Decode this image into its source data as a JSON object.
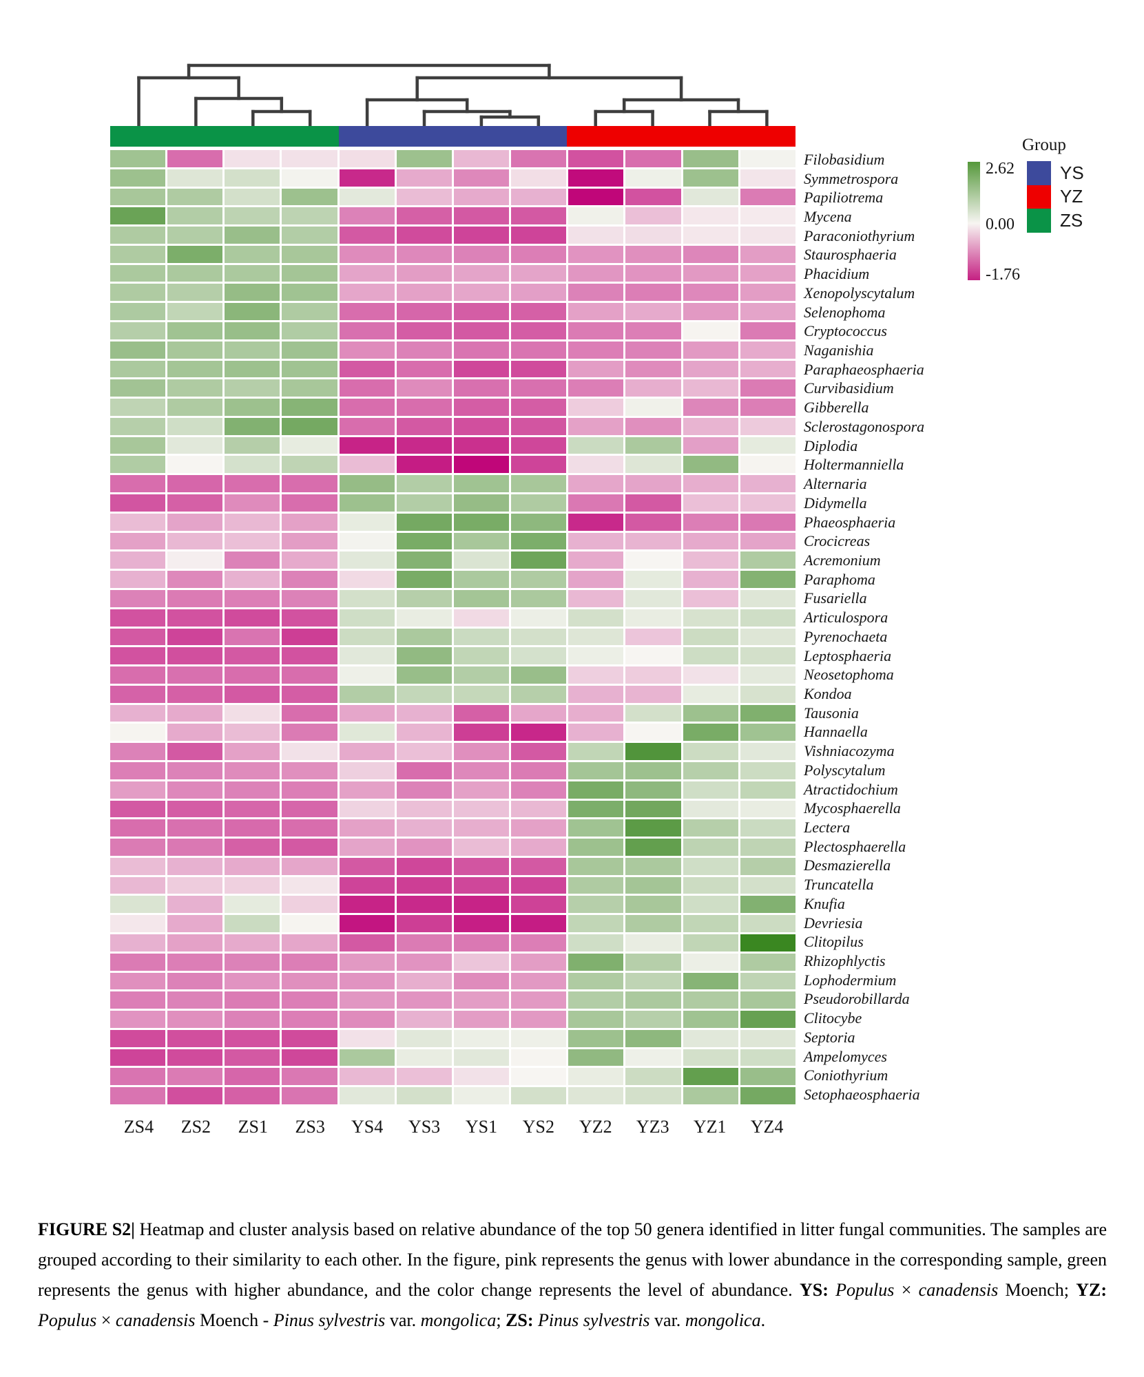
{
  "legend": {
    "group_title": "Group",
    "groups": [
      {
        "label": "YS",
        "color": "#3d4a9c"
      },
      {
        "label": "YZ",
        "color": "#ee0000"
      },
      {
        "label": "ZS",
        "color": "#0a9347"
      }
    ],
    "colorbar": {
      "max_label": "2.62",
      "mid_label": "0.00",
      "min_label": "-1.76",
      "top_color": "#55983b",
      "mid_color": "#f7f5f2",
      "bottom_color": "#c52082",
      "mid_stop_pct": 52
    }
  },
  "chart_data": {
    "type": "heatmap",
    "title": "Heatmap and cluster analysis of top 50 genera in litter fungal communities",
    "legend_position": "right",
    "value_range": [
      -1.76,
      2.62
    ],
    "colormap": {
      "negative": "#c00679",
      "zero": "#f7f5f2",
      "positive": "#3a8721"
    },
    "columns": [
      "ZS4",
      "ZS2",
      "ZS1",
      "ZS3",
      "YS4",
      "YS3",
      "YS1",
      "YS2",
      "YZ2",
      "YZ3",
      "YZ1",
      "YZ4"
    ],
    "column_groups": [
      "ZS",
      "ZS",
      "ZS",
      "ZS",
      "YS",
      "YS",
      "YS",
      "YS",
      "YZ",
      "YZ",
      "YZ",
      "YZ"
    ],
    "group_colors": {
      "ZS": "#0a9347",
      "YS": "#3d4a9c",
      "YZ": "#ee0000"
    },
    "rows": [
      "Filobasidium",
      "Symmetrospora",
      "Papiliotrema",
      "Mycena",
      "Paraconiothyrium",
      "Staurosphaeria",
      "Phacidium",
      "Xenopolyscytalum",
      "Selenophoma",
      "Cryptococcus",
      "Naganishia",
      "Paraphaeosphaeria",
      "Curvibasidium",
      "Gibberella",
      "Sclerostagonospora",
      "Diplodia",
      "Holtermanniella",
      "Alternaria",
      "Didymella",
      "Phaeosphaeria",
      "Crocicreas",
      "Acremonium",
      "Paraphoma",
      "Fusariella",
      "Articulospora",
      "Pyrenochaeta",
      "Leptosphaeria",
      "Neosetophoma",
      "Kondoa",
      "Tausonia",
      "Hannaella",
      "Vishniacozyma",
      "Polyscytalum",
      "Atractidochium",
      "Mycosphaerella",
      "Lectera",
      "Plectosphaerella",
      "Desmazierella",
      "Truncatella",
      "Knufia",
      "Devriesia",
      "Clitopilus",
      "Rhizophlyctis",
      "Lophodermium",
      "Pseudorobillarda",
      "Clitocybe",
      "Septoria",
      "Ampelomyces",
      "Coniothyrium",
      "Setophaeosphaeria"
    ],
    "values": [
      [
        1.2,
        -1.0,
        -0.15,
        -0.15,
        -0.17,
        1.25,
        -0.45,
        -0.95,
        -1.2,
        -1.0,
        1.3,
        0.05
      ],
      [
        1.25,
        0.35,
        0.5,
        0.05,
        -1.5,
        -0.55,
        -0.8,
        -0.17,
        -1.72,
        0.12,
        1.25,
        -0.12
      ],
      [
        1.1,
        1.0,
        0.5,
        1.25,
        0.28,
        -0.42,
        -0.55,
        -0.5,
        -1.76,
        -1.2,
        0.3,
        -0.9
      ],
      [
        1.95,
        0.95,
        0.8,
        0.8,
        -0.85,
        -1.1,
        -1.15,
        -1.15,
        0.1,
        -0.4,
        -0.1,
        -0.08
      ],
      [
        1.0,
        0.95,
        1.3,
        0.95,
        -1.15,
        -1.25,
        -1.3,
        -1.3,
        -0.15,
        -0.18,
        -0.1,
        -0.12
      ],
      [
        1.0,
        1.7,
        1.05,
        1.1,
        -0.78,
        -0.8,
        -0.85,
        -0.88,
        -0.72,
        -0.75,
        -0.82,
        -0.65
      ],
      [
        1.05,
        1.05,
        1.05,
        1.15,
        -0.6,
        -0.65,
        -0.6,
        -0.6,
        -0.7,
        -0.72,
        -0.68,
        -0.62
      ],
      [
        1.0,
        0.92,
        1.35,
        1.2,
        -0.58,
        -0.62,
        -0.58,
        -0.63,
        -0.85,
        -0.88,
        -0.8,
        -0.65
      ],
      [
        1.02,
        0.75,
        1.5,
        1.0,
        -1.0,
        -1.05,
        -1.12,
        -1.1,
        -0.62,
        -0.55,
        -0.68,
        -0.6
      ],
      [
        0.92,
        1.2,
        1.32,
        0.98,
        -0.98,
        -1.12,
        -1.15,
        -1.12,
        -0.9,
        -0.88,
        0.02,
        -0.9
      ],
      [
        1.3,
        1.1,
        1.05,
        1.22,
        -0.78,
        -0.85,
        -0.95,
        -0.95,
        -0.88,
        -0.85,
        -0.68,
        -0.55
      ],
      [
        1.05,
        1.15,
        1.25,
        1.2,
        -1.15,
        -1.0,
        -1.28,
        -1.25,
        -0.65,
        -0.78,
        -0.6,
        -0.52
      ],
      [
        1.18,
        1.0,
        0.92,
        1.1,
        -1.0,
        -0.78,
        -0.98,
        -0.98,
        -0.88,
        -0.52,
        -0.45,
        -0.9
      ],
      [
        0.78,
        1.0,
        1.25,
        1.55,
        -1.0,
        -1.0,
        -1.12,
        -1.12,
        -0.3,
        0.1,
        -0.82,
        -0.88
      ],
      [
        0.9,
        0.55,
        1.62,
        1.8,
        -1.0,
        -1.15,
        -1.22,
        -1.18,
        -0.62,
        -0.75,
        -0.48,
        -0.32
      ],
      [
        1.1,
        0.3,
        0.92,
        0.22,
        -1.55,
        -1.5,
        -1.45,
        -1.28,
        0.62,
        1.05,
        -0.63,
        0.25
      ],
      [
        0.98,
        0.0,
        0.48,
        0.78,
        -0.42,
        -1.6,
        -1.76,
        -1.3,
        -0.18,
        0.35,
        1.4,
        0.02
      ],
      [
        -1.0,
        -1.05,
        -1.0,
        -1.0,
        1.35,
        0.95,
        1.2,
        1.1,
        -0.58,
        -0.6,
        -0.52,
        -0.5
      ],
      [
        -1.18,
        -1.1,
        -0.78,
        -1.0,
        1.25,
        0.95,
        1.35,
        1.0,
        -0.92,
        -1.15,
        -0.4,
        -0.38
      ],
      [
        -0.42,
        -0.6,
        -0.45,
        -0.62,
        0.22,
        1.8,
        1.75,
        1.45,
        -1.5,
        -1.15,
        -0.88,
        -0.92
      ],
      [
        -0.62,
        -0.45,
        -0.4,
        -0.65,
        0.05,
        1.75,
        1.1,
        1.7,
        -0.5,
        -0.48,
        -0.55,
        -0.6
      ],
      [
        -0.5,
        -0.05,
        -0.85,
        -0.55,
        0.3,
        1.6,
        0.4,
        1.9,
        -0.55,
        0.0,
        -0.42,
        1.0
      ],
      [
        -0.5,
        -0.8,
        -0.5,
        -0.85,
        -0.2,
        1.75,
        1.05,
        1.0,
        -0.6,
        0.25,
        -0.5,
        1.6
      ],
      [
        -0.85,
        -0.9,
        -0.88,
        -0.85,
        0.5,
        0.9,
        1.15,
        1.05,
        -0.45,
        0.3,
        -0.4,
        0.35
      ],
      [
        -1.2,
        -1.2,
        -1.25,
        -1.2,
        0.55,
        0.2,
        -0.2,
        0.15,
        0.5,
        0.2,
        0.45,
        0.55
      ],
      [
        -1.15,
        -1.3,
        -0.95,
        -1.35,
        0.6,
        1.05,
        0.62,
        0.5,
        0.35,
        -0.35,
        0.6,
        0.35
      ],
      [
        -1.2,
        -1.22,
        -1.15,
        -1.2,
        0.3,
        1.4,
        0.75,
        0.48,
        0.15,
        0.0,
        0.58,
        0.5
      ],
      [
        -1.0,
        -0.98,
        -1.0,
        -1.0,
        0.12,
        1.32,
        0.95,
        1.3,
        -0.28,
        -0.3,
        -0.15,
        0.28
      ],
      [
        -1.08,
        -1.1,
        -1.15,
        -1.12,
        0.95,
        0.72,
        0.7,
        0.9,
        -0.5,
        -0.48,
        0.22,
        0.45
      ],
      [
        -0.5,
        -0.55,
        -0.17,
        -1.0,
        -0.58,
        -0.5,
        -1.1,
        -0.58,
        -0.52,
        0.5,
        1.25,
        1.65
      ],
      [
        0.02,
        -0.55,
        -0.42,
        -0.9,
        0.32,
        -0.48,
        -1.35,
        -1.52,
        -0.5,
        0.0,
        1.75,
        1.2
      ],
      [
        -0.85,
        -1.15,
        -0.62,
        -0.15,
        -0.55,
        -0.4,
        -0.75,
        -1.15,
        0.75,
        2.3,
        0.6,
        0.3
      ],
      [
        -0.88,
        -0.85,
        -0.78,
        -0.75,
        -0.28,
        -1.0,
        -0.8,
        -0.9,
        1.15,
        1.25,
        0.9,
        0.6
      ],
      [
        -0.65,
        -0.8,
        -0.85,
        -0.88,
        -0.62,
        -0.85,
        -0.62,
        -0.85,
        1.75,
        1.45,
        0.55,
        0.75
      ],
      [
        -1.15,
        -1.12,
        -1.05,
        -1.05,
        -0.25,
        -0.4,
        -0.38,
        -0.45,
        1.7,
        1.85,
        0.28,
        0.2
      ],
      [
        -1.0,
        -0.98,
        -1.02,
        -1.0,
        -0.62,
        -0.5,
        -0.52,
        -0.62,
        1.2,
        2.15,
        0.9,
        0.62
      ],
      [
        -0.9,
        -0.92,
        -1.1,
        -1.15,
        -0.6,
        -0.72,
        -0.42,
        -0.55,
        1.25,
        2.05,
        0.8,
        0.78
      ],
      [
        -0.42,
        -0.5,
        -0.55,
        -0.58,
        -1.15,
        -1.28,
        -1.18,
        -1.15,
        1.1,
        1.05,
        0.55,
        0.92
      ],
      [
        -0.45,
        -0.3,
        -0.27,
        -0.12,
        -1.3,
        -1.35,
        -1.28,
        -1.3,
        1.0,
        1.15,
        0.6,
        0.5
      ],
      [
        0.4,
        -0.5,
        0.25,
        -0.27,
        -1.55,
        -1.5,
        -1.55,
        -1.32,
        0.9,
        1.1,
        0.55,
        1.62
      ],
      [
        -0.1,
        -0.55,
        0.62,
        0.02,
        -1.65,
        -1.35,
        -1.58,
        -1.6,
        0.75,
        1.0,
        0.75,
        0.6
      ],
      [
        -0.5,
        -0.62,
        -0.55,
        -0.58,
        -1.15,
        -0.9,
        -0.92,
        -0.88,
        0.55,
        0.2,
        0.75,
        2.62
      ],
      [
        -0.9,
        -0.88,
        -0.85,
        -0.88,
        -0.68,
        -0.72,
        -0.35,
        -0.65,
        1.65,
        0.9,
        0.15,
        1.0
      ],
      [
        -0.75,
        -0.85,
        -0.72,
        -0.75,
        -0.72,
        -0.52,
        -0.78,
        -0.68,
        1.0,
        0.78,
        1.55,
        0.78
      ],
      [
        -0.88,
        -0.85,
        -0.9,
        -0.88,
        -0.7,
        -0.72,
        -0.65,
        -0.68,
        0.95,
        1.05,
        1.0,
        1.1
      ],
      [
        -0.72,
        -0.75,
        -0.85,
        -0.88,
        -0.78,
        -0.5,
        -0.65,
        -0.68,
        1.1,
        0.9,
        1.2,
        2.0
      ],
      [
        -1.25,
        -1.22,
        -1.2,
        -1.25,
        -0.15,
        0.3,
        0.15,
        0.12,
        1.25,
        1.45,
        0.3,
        0.35
      ],
      [
        -1.3,
        -1.25,
        -1.15,
        -1.28,
        1.05,
        0.2,
        0.3,
        0.02,
        1.42,
        0.12,
        0.5,
        0.55
      ],
      [
        -0.95,
        -0.9,
        -1.05,
        -0.92,
        -0.45,
        -0.4,
        -0.15,
        0.0,
        0.2,
        0.6,
        2.05,
        1.3
      ],
      [
        -0.95,
        -1.22,
        -1.1,
        -0.95,
        0.3,
        0.5,
        0.15,
        0.5,
        0.35,
        0.5,
        1.05,
        1.8
      ]
    ],
    "dendrogram": {
      "line_color": "#3e3e3e",
      "line_width": 4.5,
      "segments": [
        [
          114.1,
          30,
          637.4,
          30
        ],
        [
          114.1,
          30,
          114.1,
          48
        ],
        [
          637.4,
          30,
          637.4,
          48
        ],
        [
          41.5,
          48,
          186.6,
          48
        ],
        [
          41.5,
          48,
          41.5,
          118
        ],
        [
          186.6,
          48,
          186.6,
          78
        ],
        [
          124.4,
          78,
          248.8,
          78
        ],
        [
          124.4,
          78,
          124.4,
          118
        ],
        [
          248.8,
          78,
          248.8,
          97
        ],
        [
          207.3,
          97,
          290.2,
          97
        ],
        [
          207.3,
          97,
          207.3,
          118
        ],
        [
          290.2,
          97,
          290.2,
          118
        ],
        [
          445.7,
          48,
          829.1,
          48
        ],
        [
          445.7,
          48,
          445.7,
          80
        ],
        [
          829.1,
          48,
          829.1,
          80
        ],
        [
          373.1,
          80,
          518.2,
          80
        ],
        [
          373.1,
          80,
          373.1,
          118
        ],
        [
          518.2,
          80,
          518.2,
          97
        ],
        [
          456,
          97,
          580.4,
          97
        ],
        [
          456,
          97,
          456,
          118
        ],
        [
          580.4,
          97,
          580.4,
          105
        ],
        [
          538.9,
          105,
          621.8,
          105
        ],
        [
          538.9,
          105,
          538.9,
          118
        ],
        [
          621.8,
          105,
          621.8,
          118
        ],
        [
          746.2,
          80,
          912.0,
          80
        ],
        [
          746.2,
          80,
          746.2,
          97
        ],
        [
          912.0,
          80,
          912.0,
          97
        ],
        [
          704.7,
          97,
          787.6,
          97
        ],
        [
          704.7,
          97,
          704.7,
          118
        ],
        [
          787.6,
          97,
          787.6,
          118
        ],
        [
          870.5,
          97,
          953.4,
          97
        ],
        [
          870.5,
          97,
          870.5,
          118
        ],
        [
          953.4,
          97,
          953.4,
          118
        ]
      ]
    }
  },
  "caption": {
    "segments": [
      {
        "t": "FIGURE S2|",
        "b": 1
      },
      {
        "t": " Heatmap and cluster analysis based on relative abundance of the top 50 genera identified in litter fungal communities. The samples are grouped according to their similarity to each other. In the figure, pink represents the genus with lower abundance in the corresponding sample, green represents the genus with higher abundance, and the color change represents the level of abundance. "
      },
      {
        "t": "YS:",
        "b": 1
      },
      {
        "t": " "
      },
      {
        "t": "Populus",
        "i": 1
      },
      {
        "t": " × "
      },
      {
        "t": "canadensis",
        "i": 1
      },
      {
        "t": " Moench; "
      },
      {
        "t": "YZ:",
        "b": 1
      },
      {
        "t": " "
      },
      {
        "t": "Populus",
        "i": 1
      },
      {
        "t": " × "
      },
      {
        "t": "canadensis",
        "i": 1
      },
      {
        "t": " Moench - "
      },
      {
        "t": "Pinus sylvestris",
        "i": 1
      },
      {
        "t": " var. "
      },
      {
        "t": "mongolica",
        "i": 1
      },
      {
        "t": "; "
      },
      {
        "t": "ZS:",
        "b": 1
      },
      {
        "t": " "
      },
      {
        "t": "Pinus sylvestris",
        "i": 1
      },
      {
        "t": " var. "
      },
      {
        "t": "mongolica",
        "i": 1
      },
      {
        "t": "."
      }
    ]
  }
}
